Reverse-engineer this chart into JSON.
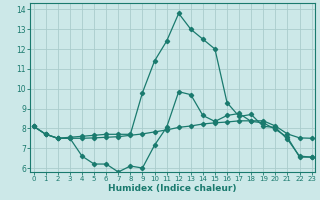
{
  "xlabel": "Humidex (Indice chaleur)",
  "bg_color": "#cce8e8",
  "line_color": "#1a7a6e",
  "grid_color": "#aacccc",
  "x_values": [
    0,
    1,
    2,
    3,
    4,
    5,
    6,
    7,
    8,
    9,
    10,
    11,
    12,
    13,
    14,
    15,
    16,
    17,
    18,
    19,
    20,
    21,
    22,
    23
  ],
  "line_peak": [
    8.1,
    7.7,
    7.5,
    7.55,
    7.6,
    7.65,
    7.7,
    7.7,
    7.7,
    9.8,
    11.4,
    12.4,
    13.8,
    13.0,
    12.5,
    12.0,
    9.3,
    8.6,
    8.7,
    8.1,
    8.05,
    7.45,
    6.6,
    6.55
  ],
  "line_mid": [
    8.1,
    7.7,
    7.5,
    7.5,
    7.5,
    7.52,
    7.55,
    7.58,
    7.65,
    7.72,
    7.82,
    7.92,
    8.05,
    8.12,
    8.22,
    8.28,
    8.32,
    8.38,
    8.38,
    8.38,
    8.12,
    7.72,
    7.52,
    7.5
  ],
  "line_low": [
    8.1,
    7.7,
    7.5,
    7.5,
    6.6,
    6.2,
    6.2,
    5.8,
    6.1,
    6.0,
    7.15,
    8.05,
    9.85,
    9.7,
    8.65,
    8.35,
    8.65,
    8.75,
    8.35,
    8.28,
    7.95,
    7.55,
    6.55,
    6.55
  ],
  "ylim": [
    5.8,
    14.3
  ],
  "xlim": [
    -0.3,
    23.3
  ],
  "yticks": [
    6,
    7,
    8,
    9,
    10,
    11,
    12,
    13,
    14
  ],
  "xticks": [
    0,
    1,
    2,
    3,
    4,
    5,
    6,
    7,
    8,
    9,
    10,
    11,
    12,
    13,
    14,
    15,
    16,
    17,
    18,
    19,
    20,
    21,
    22,
    23
  ]
}
